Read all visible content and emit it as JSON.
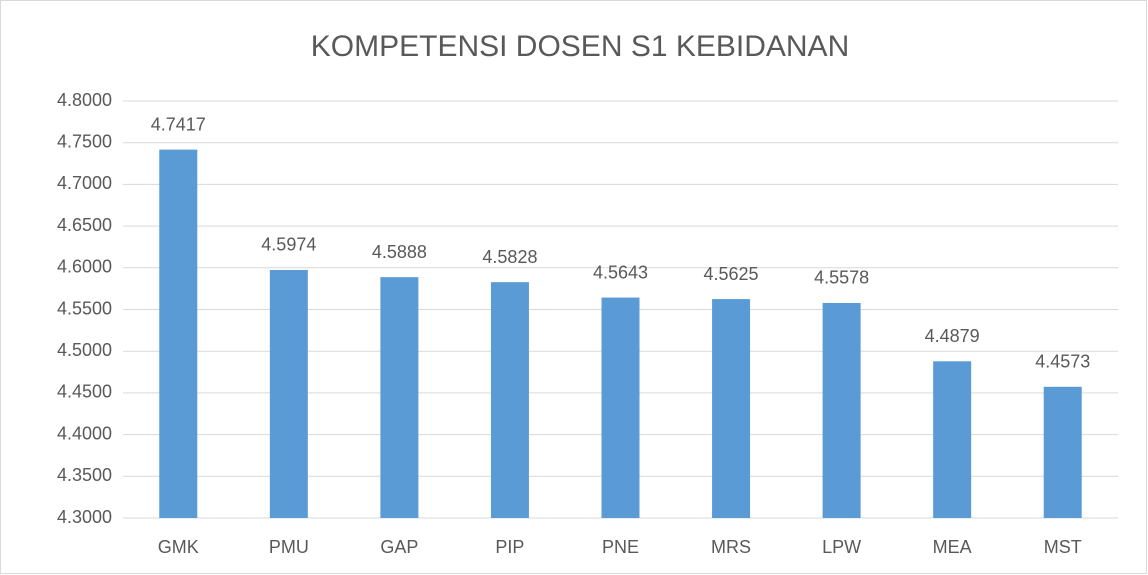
{
  "chart_data": {
    "type": "bar",
    "title": "KOMPETENSI DOSEN S1 KEBIDANAN",
    "categories": [
      "GMK",
      "PMU",
      "GAP",
      "PIP",
      "PNE",
      "MRS",
      "LPW",
      "MEA",
      "MST"
    ],
    "values": [
      4.7417,
      4.5974,
      4.5888,
      4.5828,
      4.5643,
      4.5625,
      4.5578,
      4.4879,
      4.4573
    ],
    "color": "#5b9bd5",
    "ylim": [
      4.3,
      4.8
    ],
    "yticks": [
      {
        "value": 4.3,
        "label": "4.3000"
      },
      {
        "value": 4.35,
        "label": "4.3500"
      },
      {
        "value": 4.4,
        "label": "4.4000"
      },
      {
        "value": 4.45,
        "label": "4.4500"
      },
      {
        "value": 4.5,
        "label": "4.5000"
      },
      {
        "value": 4.55,
        "label": "4.5500"
      },
      {
        "value": 4.6,
        "label": "4.6000"
      },
      {
        "value": 4.65,
        "label": "4.6500"
      },
      {
        "value": 4.7,
        "label": "4.7000"
      },
      {
        "value": 4.75,
        "label": "4.7500"
      },
      {
        "value": 4.8,
        "label": "4.8000"
      }
    ],
    "grid": true
  }
}
